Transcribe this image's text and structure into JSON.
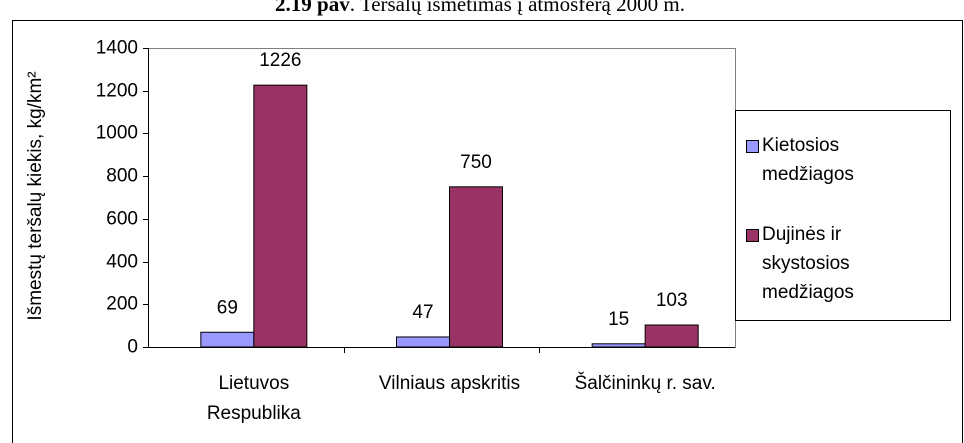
{
  "chart_data": {
    "type": "bar",
    "title_prefix": "2.19 pav",
    "title": ". Teršalų išmetimas į atmosferą 2000 m.",
    "ylabel": "Išmestų teršalų kiekis, kg/km²",
    "categories": [
      "Lietuvos Respublika",
      "Vilniaus apskritis",
      "Šalčininkų r. sav."
    ],
    "series": [
      {
        "name": "Kietosios medžiagos",
        "color": "#9999ff",
        "values": [
          69,
          47,
          15
        ]
      },
      {
        "name": "Dujinės ir skystosios medžiagos",
        "color": "#993366",
        "values": [
          1226,
          750,
          103
        ]
      }
    ],
    "ylim": [
      0,
      1400
    ],
    "yticks": [
      0,
      200,
      400,
      600,
      800,
      1000,
      1200,
      1400
    ],
    "legend": "right"
  }
}
